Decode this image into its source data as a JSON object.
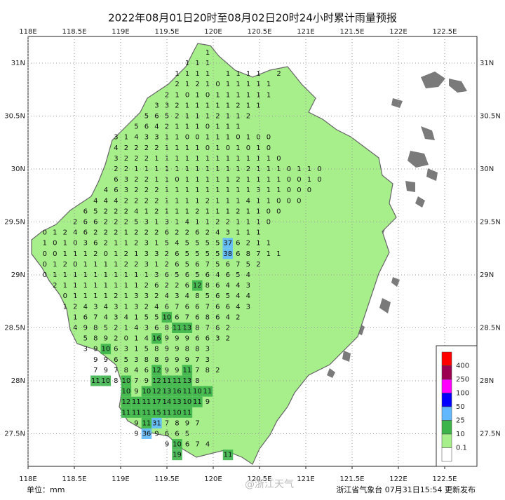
{
  "title": "2022年08月01日20时至08月02日20时24小时累计雨量预报",
  "lon_ticks": [
    {
      "value": 118,
      "label": "118E"
    },
    {
      "value": 118.5,
      "label": "118.5E"
    },
    {
      "value": 119,
      "label": "119E"
    },
    {
      "value": 119.5,
      "label": "119.5E"
    },
    {
      "value": 120,
      "label": "120E"
    },
    {
      "value": 120.5,
      "label": "120.5E"
    },
    {
      "value": 121,
      "label": "121E"
    },
    {
      "value": 121.5,
      "label": "121.5E"
    },
    {
      "value": 122,
      "label": "122E"
    },
    {
      "value": 122.5,
      "label": "122.5E"
    }
  ],
  "lat_ticks": [
    {
      "value": 31,
      "label": "31N"
    },
    {
      "value": 30.5,
      "label": "30.5N"
    },
    {
      "value": 30,
      "label": "30N"
    },
    {
      "value": 29.5,
      "label": "29.5N"
    },
    {
      "value": 29,
      "label": "29N"
    },
    {
      "value": 28.5,
      "label": "28.5N"
    },
    {
      "value": 28,
      "label": "28N"
    },
    {
      "value": 27.5,
      "label": "27.5N"
    }
  ],
  "legend": {
    "colors": [
      "#ff0000",
      "#9c0050",
      "#ff00ff",
      "#0000ff",
      "#61b8ff",
      "#3cb44a",
      "#a6ef8a",
      "#ffffff"
    ],
    "thresholds": [
      400,
      250,
      100,
      50,
      25,
      10,
      0.1
    ]
  },
  "stations": [
    {
      "lat": 31.1,
      "lon": 119.94,
      "values": [
        1
      ]
    },
    {
      "lat": 31.0,
      "lon": 119.72,
      "values": [
        1,
        1,
        1
      ]
    },
    {
      "lat": 30.9,
      "lon": 119.61,
      "values": [
        1,
        1,
        1,
        1,
        null,
        1,
        1,
        1,
        1,
        null,
        2
      ]
    },
    {
      "lat": 30.8,
      "lon": 119.61,
      "values": [
        2,
        1,
        2,
        1,
        0,
        1,
        1,
        1,
        1,
        1
      ]
    },
    {
      "lat": 30.7,
      "lon": 119.5,
      "values": [
        2,
        1,
        0,
        1,
        0,
        1,
        1,
        1,
        1,
        1,
        1
      ]
    },
    {
      "lat": 30.6,
      "lon": 119.39,
      "values": [
        3,
        3,
        2,
        1,
        1,
        1,
        1,
        1,
        2,
        1,
        1
      ]
    },
    {
      "lat": 30.5,
      "lon": 119.28,
      "values": [
        5,
        6,
        5,
        2,
        1,
        1,
        1,
        2,
        1,
        1,
        2
      ]
    },
    {
      "lat": 30.4,
      "lon": 119.17,
      "values": [
        5,
        6,
        4,
        2,
        1,
        1,
        1,
        0,
        1,
        1,
        1
      ]
    },
    {
      "lat": 30.3,
      "lon": 118.95,
      "values": [
        3,
        1,
        4,
        3,
        3,
        1,
        1,
        0,
        0,
        1,
        1,
        1,
        0,
        1,
        0,
        0
      ]
    },
    {
      "lat": 30.2,
      "lon": 118.95,
      "values": [
        4,
        2,
        2,
        2,
        2,
        1,
        1,
        1,
        1,
        0,
        1,
        0,
        1,
        0,
        1,
        0
      ]
    },
    {
      "lat": 30.1,
      "lon": 118.95,
      "values": [
        3,
        2,
        2,
        2,
        1,
        1,
        1,
        1,
        1,
        1,
        1,
        1,
        1,
        1,
        1,
        1,
        0
      ]
    },
    {
      "lat": 30.0,
      "lon": 118.95,
      "values": [
        2,
        2,
        1,
        1,
        1,
        1,
        1,
        1,
        1,
        1,
        1,
        1,
        1,
        2,
        1,
        1,
        1,
        0,
        1,
        1,
        0
      ]
    },
    {
      "lat": 29.9,
      "lon": 118.95,
      "values": [
        6,
        3,
        2,
        2,
        1,
        1,
        0,
        1,
        1,
        1,
        1,
        1,
        2,
        1,
        1,
        1,
        1,
        0,
        0,
        1,
        0
      ]
    },
    {
      "lat": 29.8,
      "lon": 118.84,
      "values": [
        4,
        6,
        3,
        2,
        2,
        2,
        1,
        1,
        1,
        1,
        1,
        1,
        1,
        1,
        1,
        3,
        1,
        1,
        0,
        0,
        0
      ]
    },
    {
      "lat": 29.7,
      "lon": 118.73,
      "values": [
        4,
        4,
        4,
        2,
        2,
        2,
        2,
        1,
        1,
        1,
        1,
        2,
        1,
        1,
        1,
        4,
        1,
        1,
        0,
        0,
        0
      ]
    },
    {
      "lat": 29.6,
      "lon": 118.62,
      "values": [
        6,
        5,
        2,
        2,
        2,
        4,
        1,
        2,
        1,
        1,
        1,
        2,
        1,
        1,
        1,
        2,
        1,
        1,
        0,
        0
      ]
    },
    {
      "lat": 29.5,
      "lon": 118.51,
      "values": [
        2,
        6,
        6,
        2,
        2,
        2,
        5,
        3,
        1,
        3,
        1,
        4,
        1,
        1,
        2,
        2,
        1,
        1,
        1,
        0
      ]
    },
    {
      "lat": 29.4,
      "lon": 118.18,
      "values": [
        0,
        1,
        2,
        4,
        6,
        2,
        2,
        2,
        1,
        2,
        2,
        2,
        6,
        2,
        2,
        6,
        2,
        4,
        3,
        1,
        1,
        1
      ]
    },
    {
      "lat": 29.3,
      "lon": 118.18,
      "values": [
        1,
        0,
        1,
        0,
        3,
        6,
        2,
        1,
        1,
        2,
        3,
        1,
        5,
        4,
        5,
        5,
        5,
        5,
        37,
        6,
        2,
        1,
        1
      ]
    },
    {
      "lat": 29.2,
      "lon": 118.18,
      "values": [
        0,
        0,
        1,
        1,
        1,
        2,
        0,
        1,
        2,
        1,
        3,
        3,
        2,
        6,
        5,
        5,
        5,
        5,
        38,
        6,
        8,
        7,
        1,
        1
      ]
    },
    {
      "lat": 29.1,
      "lon": 118.18,
      "values": [
        0,
        1,
        2,
        0,
        1,
        1,
        1,
        1,
        2,
        2,
        3,
        1,
        2,
        6,
        5,
        6,
        7,
        5,
        6,
        7,
        5,
        2
      ]
    },
    {
      "lat": 29.0,
      "lon": 118.18,
      "values": [
        0,
        1,
        1,
        1,
        1,
        1,
        1,
        1,
        1,
        1,
        1,
        3,
        6,
        5,
        6,
        5,
        6,
        4,
        6,
        5,
        4
      ]
    },
    {
      "lat": 28.9,
      "lon": 118.29,
      "values": [
        2,
        1,
        1,
        1,
        1,
        1,
        1,
        1,
        1,
        2,
        6,
        2,
        2,
        6,
        12,
        8,
        6,
        4,
        4,
        3
      ]
    },
    {
      "lat": 28.8,
      "lon": 118.4,
      "values": [
        0,
        1,
        1,
        1,
        1,
        2,
        1,
        3,
        3,
        2,
        4,
        3,
        4,
        8,
        5,
        6,
        5,
        4,
        4
      ]
    },
    {
      "lat": 28.7,
      "lon": 118.4,
      "values": [
        1,
        2,
        4,
        3,
        4,
        3,
        1,
        3,
        2,
        4,
        6,
        7,
        6,
        6,
        7,
        6,
        6,
        4,
        3
      ]
    },
    {
      "lat": 28.6,
      "lon": 118.51,
      "values": [
        1,
        6,
        7,
        4,
        3,
        4,
        1,
        5,
        5,
        10,
        6,
        7,
        6,
        8,
        6,
        4,
        2
      ]
    },
    {
      "lat": 28.5,
      "lon": 118.51,
      "values": [
        4,
        9,
        8,
        5,
        2,
        1,
        4,
        3,
        6,
        8,
        11,
        13,
        8,
        7,
        6,
        2
      ]
    },
    {
      "lat": 28.4,
      "lon": 118.62,
      "values": [
        5,
        8,
        9,
        2,
        0,
        1,
        4,
        16,
        9,
        9,
        9,
        6,
        6,
        3,
        2
      ]
    },
    {
      "lat": 28.3,
      "lon": 118.62,
      "values": [
        3,
        9,
        10,
        6,
        3,
        1,
        5,
        8,
        9,
        9,
        8,
        8,
        3
      ]
    },
    {
      "lat": 28.2,
      "lon": 118.73,
      "values": [
        9,
        9,
        6,
        5,
        3,
        8,
        8,
        9,
        9,
        9,
        7,
        3
      ]
    },
    {
      "lat": 28.1,
      "lon": 118.73,
      "values": [
        7,
        9,
        7,
        8,
        4,
        6,
        12,
        9,
        9,
        11,
        7,
        8,
        2
      ]
    },
    {
      "lat": 28.0,
      "lon": 118.73,
      "values": [
        11,
        10,
        8,
        10,
        7,
        9,
        12,
        11,
        11,
        13,
        8
      ]
    },
    {
      "lat": 27.9,
      "lon": 119.06,
      "values": [
        10,
        9,
        10,
        12,
        13,
        16,
        11,
        10,
        11
      ]
    },
    {
      "lat": 27.8,
      "lon": 119.06,
      "values": [
        12,
        11,
        11,
        17,
        14,
        13,
        10,
        11,
        9
      ]
    },
    {
      "lat": 27.7,
      "lon": 119.06,
      "values": [
        11,
        11,
        11,
        15,
        11,
        10,
        11
      ]
    },
    {
      "lat": 27.6,
      "lon": 119.17,
      "values": [
        9,
        11,
        31,
        7,
        8,
        9,
        7
      ]
    },
    {
      "lat": 27.5,
      "lon": 119.17,
      "values": [
        9,
        36,
        9,
        6,
        6,
        5
      ]
    },
    {
      "lat": 27.4,
      "lon": 119.5,
      "values": [
        9,
        10,
        6,
        7,
        4
      ]
    },
    {
      "lat": 27.3,
      "lon": 119.61,
      "values": [
        19,
        null,
        null,
        null,
        null,
        11
      ]
    }
  ],
  "footer": {
    "unit": "单位：mm",
    "watermark": "@浙江天气",
    "issuer": "浙江省气象台 07月31日15:54 更新发布"
  }
}
